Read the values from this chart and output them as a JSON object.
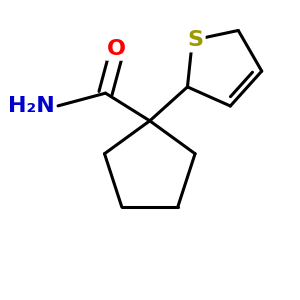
{
  "background_color": "#ffffff",
  "bond_color": "#000000",
  "bond_width": 2.2,
  "atom_colors": {
    "O": "#ff0000",
    "N": "#0000cd",
    "S": "#9b9b00",
    "C": "#000000"
  },
  "font_size_atom": 16
}
